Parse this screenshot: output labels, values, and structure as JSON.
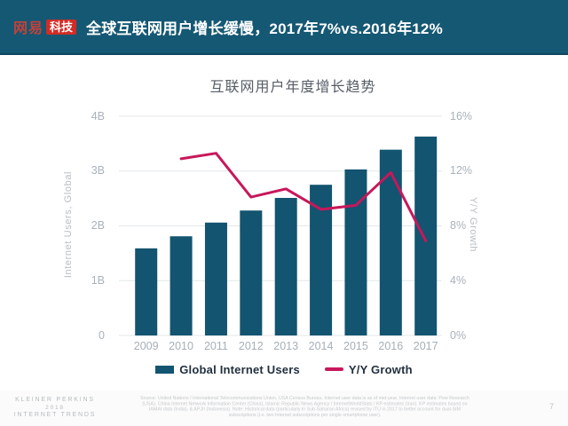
{
  "header": {
    "logo": {
      "brand": "网易",
      "badge": "科技"
    },
    "title": "全球互联网用户增长缓慢，2017年7%vs.2016年12%"
  },
  "chart": {
    "title": "互联网用户年度增长趋势",
    "left_axis_title": "Internet Users, Global",
    "right_axis_title": "Y/Y Growth",
    "left_ticks": [
      "4B",
      "3B",
      "2B",
      "1B",
      "0"
    ],
    "right_ticks": [
      "16%",
      "12%",
      "8%",
      "4%",
      "0%"
    ],
    "legend": [
      {
        "label": "Global Internet Users",
        "type": "bar"
      },
      {
        "label": "Y/Y Growth",
        "type": "line"
      }
    ]
  },
  "chart_data": {
    "type": "bar",
    "title": "互联网用户年度增长趋势",
    "categories": [
      "2009",
      "2010",
      "2011",
      "2012",
      "2013",
      "2014",
      "2015",
      "2016",
      "2017"
    ],
    "series": [
      {
        "name": "Global Internet Users",
        "type": "bar",
        "axis": "left",
        "unit": "billions",
        "values": [
          1.59,
          1.81,
          2.06,
          2.28,
          2.51,
          2.75,
          3.03,
          3.39,
          3.63
        ]
      },
      {
        "name": "Y/Y Growth",
        "type": "line",
        "axis": "right",
        "unit": "%",
        "start_index": 1,
        "values": [
          12.9,
          13.3,
          10.1,
          10.7,
          9.2,
          9.5,
          11.9,
          6.9
        ]
      }
    ],
    "left_ylabel": "Internet Users, Global",
    "right_ylabel": "Y/Y Growth",
    "left_ylim": [
      0,
      4
    ],
    "right_ylim": [
      0,
      16
    ],
    "grid": true,
    "legend_position": "bottom"
  },
  "footer": {
    "brand_lines": [
      "KLEINER PERKINS",
      "2018",
      "INTERNET TRENDS"
    ],
    "source": "Source: United Nations / International Telecommunications Union, USA Census Bureau. Internet user data is as of mid-year. Internet user data: Pew Research (USA), China Internet Network Information Center (China), Islamic Republic News Agency / InternetWorldStats / KP estimates (Iran). KP estimates based on IAMAI data (India), & APJII (Indonesia). Note: Historical data (particularly in Sub-Saharan Africa) revised by ITU in 2017 to better account for dual-SIM subscriptions (i.e. two Internet subscriptions per single smartphone user).",
    "page_number": "7"
  },
  "colors": {
    "header_bg": "#155873",
    "logo_brand_red": "#c2413b",
    "logo_badge_red": "#d32b26",
    "bar_color": "#135470",
    "line_color": "#c8175b",
    "grid_color": "#e4e7e9"
  }
}
